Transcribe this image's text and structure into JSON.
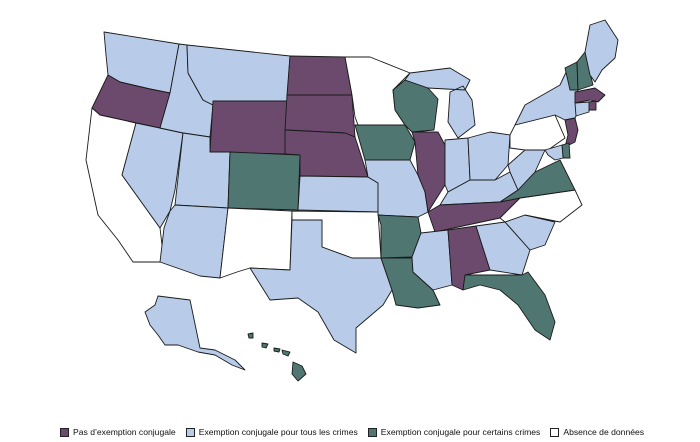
{
  "colors": {
    "none": "#6b4a6e",
    "all": "#b8cce9",
    "some": "#4f7671",
    "nodata": "#ffffff",
    "border": "#1a1a1a"
  },
  "legend": [
    {
      "key": "none",
      "label": "Pas d’exemption conjugale"
    },
    {
      "key": "all",
      "label": "Exemption conjugale pour tous les crimes"
    },
    {
      "key": "some",
      "label": "Exemption conjugale pour certains crimes"
    },
    {
      "key": "nodata",
      "label": "Absence de données"
    }
  ],
  "states": {
    "WA": "all",
    "OR": "none",
    "CA": "nodata",
    "NV": "all",
    "ID": "all",
    "MT": "all",
    "WY": "none",
    "UT": "all",
    "AZ": "all",
    "CO": "some",
    "NM": "nodata",
    "ND": "none",
    "SD": "none",
    "NE": "none",
    "KS": "all",
    "OK": "nodata",
    "TX": "all",
    "MN": "nodata",
    "IA": "some",
    "MO": "all",
    "AR": "some",
    "LA": "some",
    "WI": "some",
    "IL": "none",
    "MI": "all",
    "IN": "all",
    "OH": "all",
    "KY": "all",
    "TN": "none",
    "MS": "all",
    "AL": "none",
    "GA": "all",
    "FL": "some",
    "SC": "all",
    "NC": "nodata",
    "VA": "some",
    "WV": "all",
    "PA": "nodata",
    "NY": "all",
    "VT": "some",
    "NH": "some",
    "ME": "all",
    "MA": "none",
    "RI": "none",
    "CT": "all",
    "NJ": "none",
    "DE": "some",
    "MD": "all",
    "AK": "all",
    "HI": "some"
  }
}
